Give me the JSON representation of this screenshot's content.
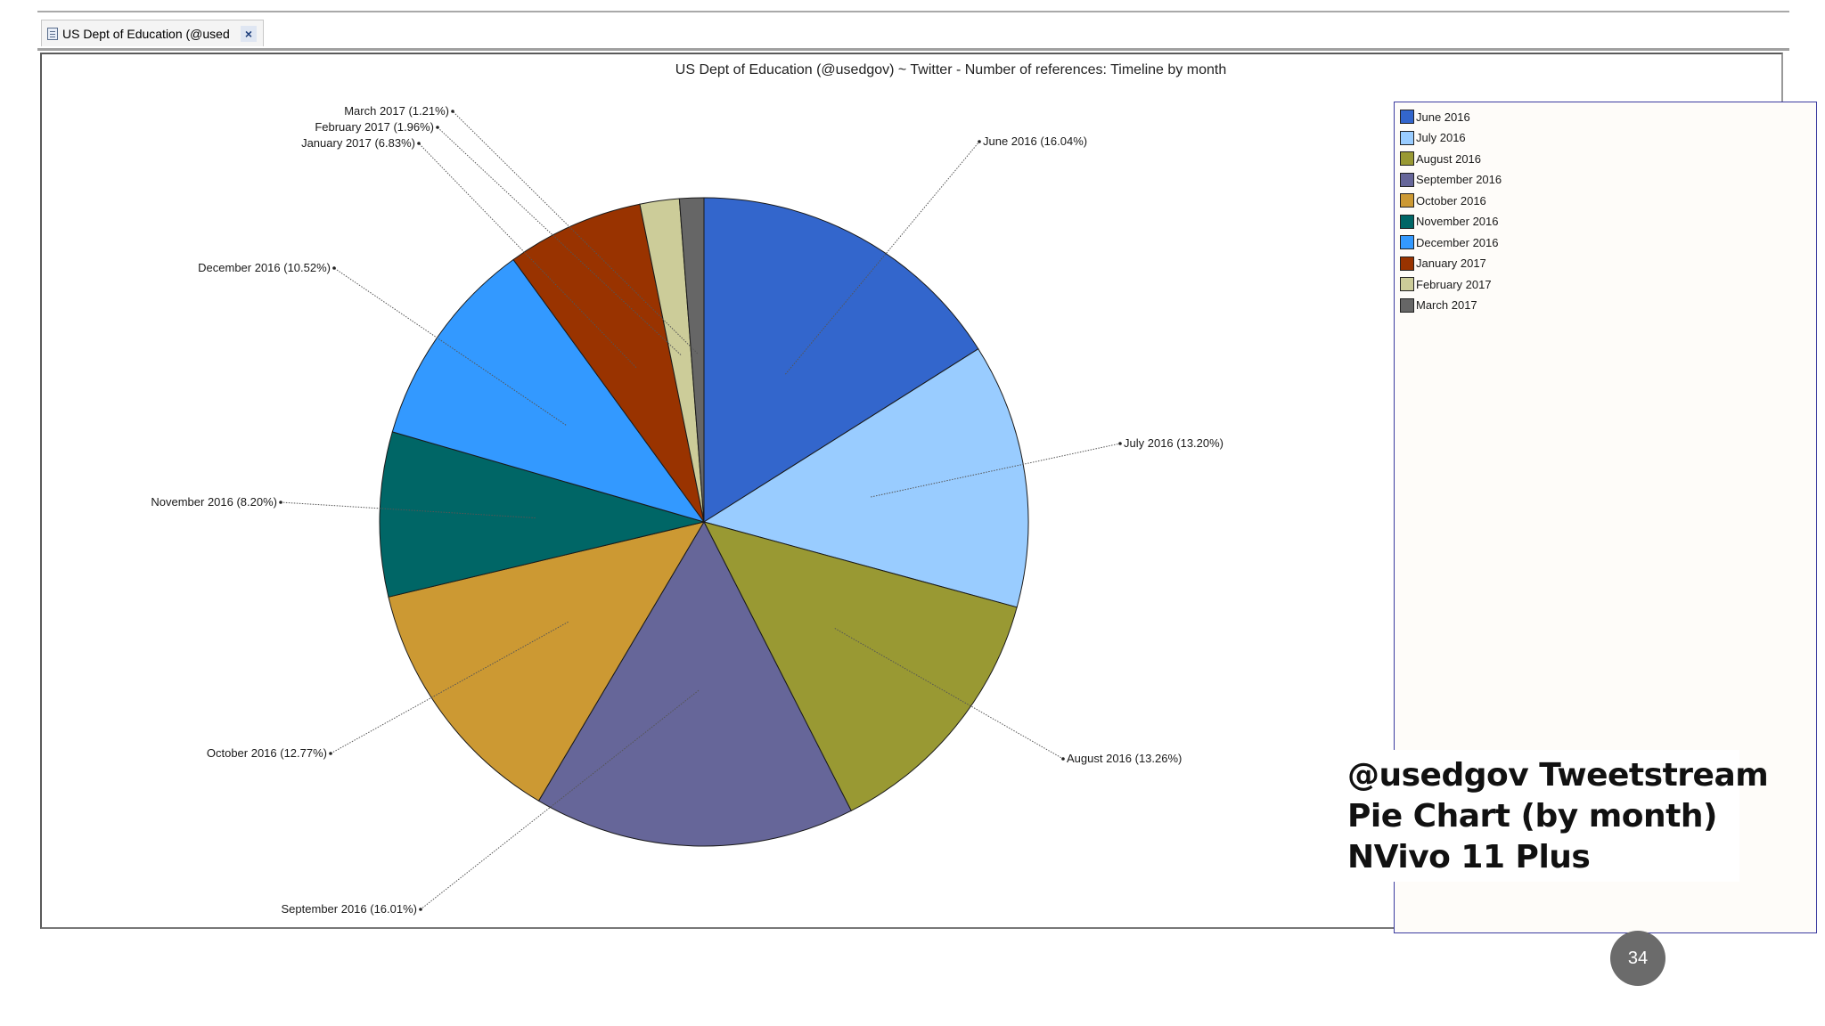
{
  "tab": {
    "label": "US Dept of Education (@used",
    "close_glyph": "×"
  },
  "chart_data": {
    "type": "pie",
    "title": "US Dept of Education (@usedgov) ~ Twitter - Number of references: Timeline by month",
    "start_angle_deg": 0,
    "direction": "clockwise",
    "legend_position": "right",
    "slices": [
      {
        "name": "June 2016",
        "value": 16.04,
        "label": "June 2016 (16.04%)",
        "color": "#3366CC"
      },
      {
        "name": "July 2016",
        "value": 13.2,
        "label": "July 2016 (13.20%)",
        "color": "#99CCFF"
      },
      {
        "name": "August 2016",
        "value": 13.26,
        "label": "August 2016 (13.26%)",
        "color": "#999933"
      },
      {
        "name": "September 2016",
        "value": 16.01,
        "label": "September 2016 (16.01%)",
        "color": "#666699"
      },
      {
        "name": "October 2016",
        "value": 12.77,
        "label": "October 2016 (12.77%)",
        "color": "#CC9933"
      },
      {
        "name": "November 2016",
        "value": 8.2,
        "label": "November 2016 (8.20%)",
        "color": "#006666"
      },
      {
        "name": "December 2016",
        "value": 10.52,
        "label": "December 2016 (10.52%)",
        "color": "#3399FF"
      },
      {
        "name": "January 2017",
        "value": 6.83,
        "label": "January 2017 (6.83%)",
        "color": "#993300"
      },
      {
        "name": "February 2017",
        "value": 1.96,
        "label": "February 2017 (1.96%)",
        "color": "#CCCC99"
      },
      {
        "name": "March 2017",
        "value": 1.21,
        "label": "March 2017 (1.21%)",
        "color": "#666666"
      }
    ]
  },
  "caption": {
    "line1": "@usedgov Tweetstream",
    "line2": "Pie Chart (by month)",
    "line3": "NVivo 11 Plus"
  },
  "page_number": "34"
}
